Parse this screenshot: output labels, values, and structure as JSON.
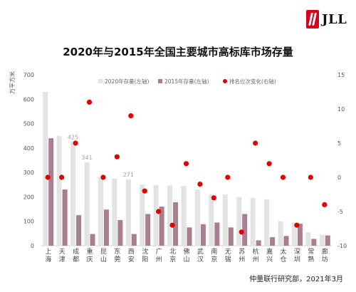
{
  "brand": {
    "logo_text": "JLL",
    "logo_color": "#d6001c"
  },
  "chart_data": {
    "type": "bar",
    "title": "2020年与2015年全国主要城市高标库市场存量",
    "ylabel_left": "万平方米",
    "ylim_left": [
      0,
      700
    ],
    "yticks_left": [
      0,
      100,
      200,
      300,
      400,
      500,
      600,
      700
    ],
    "ylim_right": [
      -10,
      15
    ],
    "yticks_right": [
      -10,
      -5,
      0,
      5,
      10,
      15
    ],
    "categories": [
      "上海",
      "天津",
      "成都",
      "重庆",
      "昆山",
      "东莞",
      "西安",
      "沈阳",
      "广州",
      "北京",
      "佛山",
      "武汉",
      "南京",
      "无锡",
      "苏州",
      "杭州",
      "嘉兴",
      "太仓",
      "深圳",
      "常熟",
      "廊坊"
    ],
    "category_labels": [
      "上\n海",
      "天\n津",
      "成\n都",
      "重\n庆",
      "昆\n山",
      "东\n莞",
      "西\n安",
      "沈\n阳",
      "广\n州",
      "北\n京",
      "佛\n山",
      "武\n汉",
      "南\n京",
      "无\n锡",
      "苏\n州",
      "杭\n州",
      "嘉\n兴",
      "太\n仓",
      "深\n圳",
      "常\n熟",
      "廊\n坊"
    ],
    "series": [
      {
        "name": "2020年存量(左轴)",
        "axis": "left",
        "kind": "bar",
        "color": "#e3e3e3",
        "values": [
          630,
          450,
          425,
          341,
          280,
          275,
          271,
          250,
          248,
          247,
          245,
          230,
          210,
          210,
          200,
          195,
          190,
          100,
          95,
          55,
          45
        ]
      },
      {
        "name": "2015年存量(左轴)",
        "axis": "left",
        "kind": "bar",
        "color": "#a87f91",
        "values": [
          440,
          230,
          125,
          48,
          148,
          105,
          48,
          130,
          160,
          178,
          75,
          88,
          95,
          75,
          130,
          22,
          35,
          40,
          90,
          28,
          42
        ]
      },
      {
        "name": "排名位次变化(右轴)",
        "axis": "right",
        "kind": "scatter",
        "color": "#e00000",
        "values": [
          0,
          0,
          5,
          11,
          0,
          3,
          9,
          -2,
          -5,
          -7,
          2,
          -1,
          -3,
          0,
          -8,
          5,
          2,
          0,
          -7,
          0,
          -4
        ]
      }
    ],
    "data_labels": [
      {
        "series": 0,
        "index": 2,
        "text": "425"
      },
      {
        "series": 0,
        "index": 3,
        "text": "341"
      },
      {
        "series": 0,
        "index": 6,
        "text": "271"
      }
    ],
    "legend_position": "top-center",
    "grid": false
  },
  "footer": {
    "source": "仲量联行研究部，2021年3月"
  }
}
